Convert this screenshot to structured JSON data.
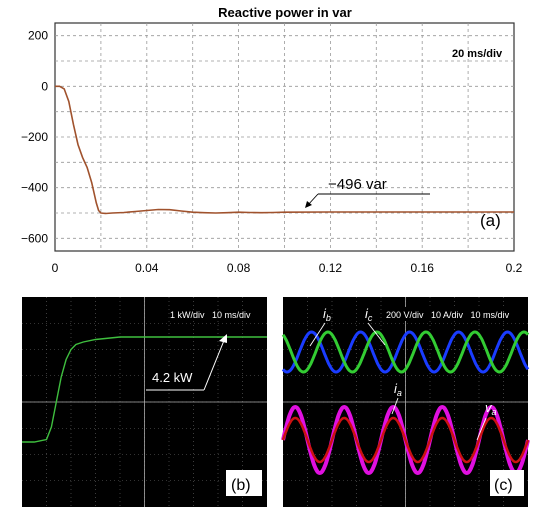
{
  "chart_data": [
    {
      "type": "line",
      "panel_label": "(a)",
      "title": "Reactive power in var",
      "scale_note": "20 ms/div",
      "annotation": "−496 var",
      "xlim": [
        0,
        0.2
      ],
      "ylim": [
        -650,
        250
      ],
      "x_ticks": [
        0,
        0.04,
        0.08,
        0.12,
        0.16,
        0.2
      ],
      "x_tick_labels": [
        "0",
        "0.04",
        "0.08",
        "0.12",
        "0.16",
        "0.2"
      ],
      "y_ticks": [
        200,
        0,
        -200,
        -400,
        -600
      ],
      "y_tick_labels": [
        "200",
        "0",
        "−200",
        "−400",
        "−600"
      ],
      "grid": true,
      "color": "#a0522d",
      "series": [
        {
          "x": [
            0,
            0.002,
            0.004,
            0.006,
            0.008,
            0.01,
            0.012,
            0.014,
            0.016,
            0.018,
            0.019,
            0.02,
            0.022,
            0.025,
            0.03,
            0.035,
            0.04,
            0.045,
            0.05,
            0.055,
            0.06,
            0.065,
            0.07,
            0.075,
            0.08,
            0.085,
            0.09,
            0.095,
            0.1,
            0.12,
            0.14,
            0.16,
            0.18,
            0.2
          ],
          "y": [
            0,
            0,
            -10,
            -60,
            -150,
            -230,
            -280,
            -320,
            -380,
            -460,
            -490,
            -500,
            -502,
            -500,
            -498,
            -494,
            -490,
            -486,
            -487,
            -492,
            -497,
            -499,
            -500,
            -499,
            -497,
            -498,
            -499,
            -498,
            -497,
            -496,
            -496,
            -496,
            -496,
            -496
          ]
        }
      ]
    },
    {
      "type": "line",
      "panel_label": "(b)",
      "scale_note": "1 kW/div   10 ms/div",
      "annotation": "4.2 kW",
      "color": "#3fbf3f",
      "series": [
        {
          "x": [
            0,
            5,
            10,
            12,
            14,
            16,
            18,
            20,
            22,
            25,
            30,
            40,
            60,
            80,
            100
          ],
          "y": [
            0,
            0,
            0.1,
            0.6,
            1.6,
            2.6,
            3.3,
            3.7,
            3.9,
            4.0,
            4.1,
            4.2,
            4.2,
            4.2,
            4.2
          ]
        }
      ]
    },
    {
      "type": "line",
      "panel_label": "(c)",
      "scale_note": "200 V/div   10 A/div   10 ms/div",
      "labels": {
        "ib_main": "i",
        "ib_sub": "b",
        "ic_main": "i",
        "ic_sub": "c",
        "ia_main": "i",
        "ia_sub": "a",
        "va_main": "v",
        "va_sub": "a"
      },
      "series": [
        {
          "name_main": "i",
          "name_sub": "b",
          "color": "#1a3cff",
          "amplitude": 1,
          "phase_deg": 120,
          "cycles": 5
        },
        {
          "name_main": "i",
          "name_sub": "c",
          "color": "#33cc33",
          "amplitude": 1,
          "phase_deg": 240,
          "cycles": 5
        },
        {
          "name_main": "i",
          "name_sub": "a",
          "color": "#cc1111",
          "amplitude": 1,
          "phase_deg": 0,
          "cycles": 5
        },
        {
          "name_main": "v",
          "name_sub": "a",
          "color": "#e010e0",
          "amplitude": 1.5,
          "phase_deg": 0,
          "cycles": 5
        }
      ]
    }
  ]
}
